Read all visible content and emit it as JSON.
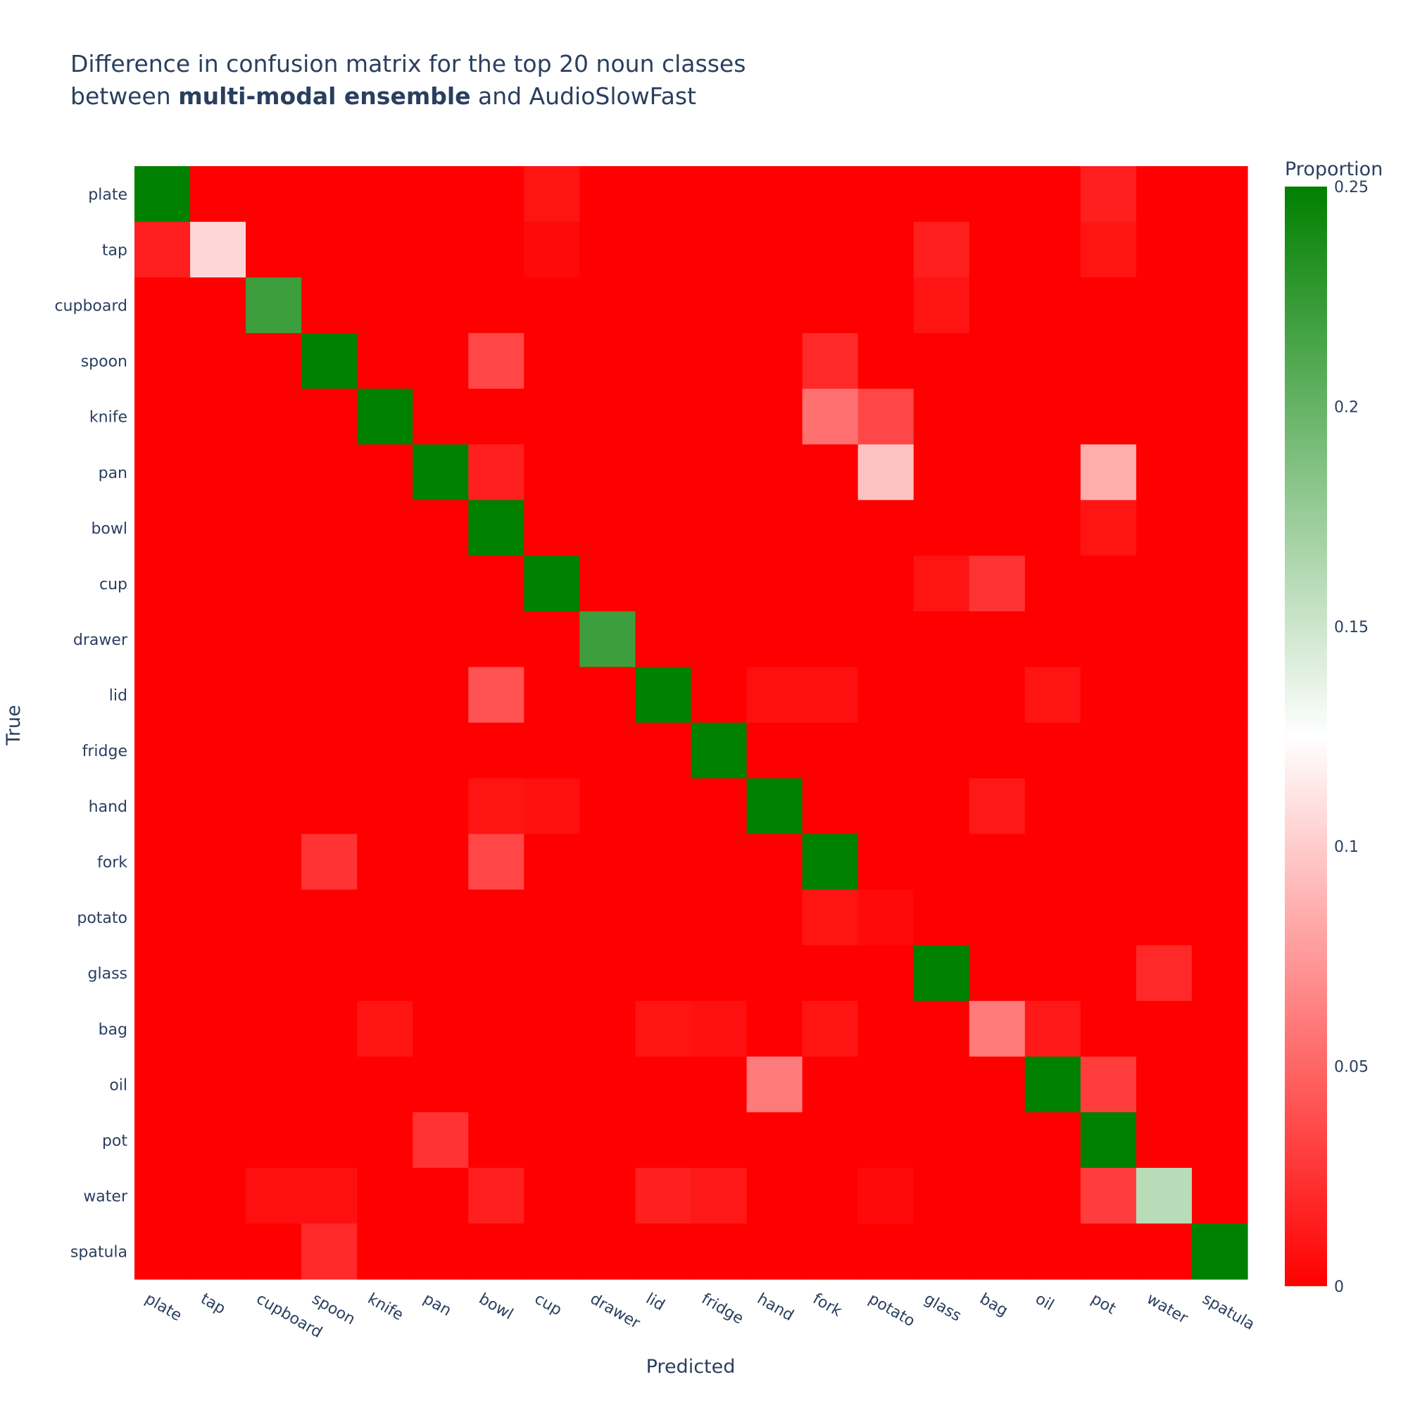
{
  "chart_data": {
    "type": "heatmap",
    "title_line1": "Difference in confusion matrix for the top 20 noun classes",
    "title_line2_prefix": "between ",
    "title_line2_bold": "multi-modal ensemble",
    "title_line2_suffix": " and AudioSlowFast",
    "xlabel": "Predicted",
    "ylabel": "True",
    "colorbar_title": "Proportion",
    "zlim": [
      0,
      0.25
    ],
    "colorscale": [
      "#ff0000",
      "#ffffff",
      "#008000"
    ],
    "colorbar_ticks": [
      "0",
      "0.05",
      "0.1",
      "0.15",
      "0.2",
      "0.25"
    ],
    "colorbar_tick_values": [
      0,
      0.05,
      0.1,
      0.15,
      0.2,
      0.25
    ],
    "x_categories": [
      "plate",
      "tap",
      "cupboard",
      "spoon",
      "knife",
      "pan",
      "bowl",
      "cup",
      "drawer",
      "lid",
      "fridge",
      "hand",
      "fork",
      "potato",
      "glass",
      "bag",
      "oil",
      "pot",
      "water",
      "spatula"
    ],
    "y_categories": [
      "plate",
      "tap",
      "cupboard",
      "spoon",
      "knife",
      "pan",
      "bowl",
      "cup",
      "drawer",
      "lid",
      "fridge",
      "hand",
      "fork",
      "potato",
      "glass",
      "bag",
      "oil",
      "pot",
      "water",
      "spatula"
    ],
    "z": [
      [
        0.25,
        0,
        0,
        0,
        0,
        0,
        0,
        0.01,
        0,
        0,
        0,
        0,
        0,
        0,
        0,
        0,
        0,
        0.015,
        0,
        0
      ],
      [
        0.015,
        0.105,
        0,
        0,
        0,
        0,
        0,
        0.005,
        0,
        0,
        0,
        0,
        0,
        0,
        0.015,
        0,
        0,
        0.01,
        0,
        0
      ],
      [
        0,
        0,
        0.22,
        0,
        0,
        0,
        0,
        0,
        0,
        0,
        0,
        0,
        0,
        0,
        0.01,
        0,
        0,
        0,
        0,
        0
      ],
      [
        0,
        0,
        0,
        0.25,
        0,
        0,
        0.035,
        0,
        0,
        0,
        0,
        0,
        0.02,
        0,
        0,
        0,
        0,
        0,
        0,
        0
      ],
      [
        0,
        0,
        0,
        0,
        0.25,
        0,
        0,
        0,
        0,
        0,
        0,
        0,
        0.055,
        0.035,
        0,
        0,
        0,
        0,
        0,
        0
      ],
      [
        0,
        0,
        0,
        0,
        0,
        0.25,
        0.015,
        0,
        0,
        0,
        0,
        0,
        0,
        0.095,
        0,
        0,
        0,
        0.085,
        0,
        0
      ],
      [
        0,
        0,
        0,
        0,
        0,
        0,
        0.25,
        0,
        0,
        0,
        0,
        0,
        0,
        0,
        0,
        0,
        0,
        0.01,
        0,
        0
      ],
      [
        0,
        0,
        0,
        0,
        0,
        0,
        0,
        0.25,
        0,
        0,
        0,
        0,
        0,
        0,
        0.01,
        0.025,
        0,
        0,
        0,
        0
      ],
      [
        0,
        0,
        0,
        0,
        0,
        0,
        0,
        0,
        0.22,
        0,
        0,
        0,
        0,
        0,
        0,
        0,
        0,
        0,
        0,
        0
      ],
      [
        0,
        0,
        0,
        0,
        0,
        0,
        0.04,
        0,
        0,
        0.25,
        0,
        0.008,
        0.008,
        0,
        0,
        0,
        0.01,
        0,
        0,
        0
      ],
      [
        0,
        0,
        0,
        0,
        0,
        0,
        0,
        0,
        0,
        0,
        0.25,
        0,
        0,
        0,
        0,
        0,
        0,
        0,
        0,
        0
      ],
      [
        0,
        0,
        0,
        0,
        0,
        0,
        0.01,
        0.008,
        0,
        0,
        0,
        0.25,
        0,
        0,
        0,
        0.012,
        0,
        0,
        0,
        0
      ],
      [
        0,
        0,
        0,
        0.025,
        0,
        0,
        0.035,
        0,
        0,
        0,
        0,
        0,
        0.25,
        0,
        0,
        0,
        0,
        0,
        0,
        0
      ],
      [
        0,
        0,
        0,
        0,
        0,
        0,
        0,
        0,
        0,
        0,
        0,
        0,
        0.01,
        0.005,
        0,
        0,
        0,
        0,
        0,
        0
      ],
      [
        0,
        0,
        0,
        0,
        0,
        0,
        0,
        0,
        0,
        0,
        0,
        0,
        0,
        0,
        0.25,
        0,
        0,
        0,
        0.02,
        0
      ],
      [
        0,
        0,
        0,
        0,
        0.01,
        0,
        0,
        0,
        0,
        0.01,
        0.008,
        0,
        0.01,
        0,
        0,
        0.06,
        0.012,
        0,
        0,
        0
      ],
      [
        0,
        0,
        0,
        0,
        0,
        0,
        0,
        0,
        0,
        0,
        0,
        0.06,
        0,
        0,
        0,
        0,
        0.25,
        0.03,
        0,
        0
      ],
      [
        0,
        0,
        0,
        0,
        0,
        0.025,
        0,
        0,
        0,
        0,
        0,
        0,
        0,
        0,
        0,
        0,
        0,
        0.25,
        0,
        0
      ],
      [
        0,
        0,
        0.008,
        0.008,
        0,
        0,
        0.015,
        0,
        0,
        0.015,
        0.012,
        0,
        0,
        0.005,
        0,
        0,
        0,
        0.03,
        0.16,
        0
      ],
      [
        0,
        0,
        0,
        0.02,
        0,
        0,
        0,
        0,
        0,
        0,
        0,
        0,
        0,
        0,
        0,
        0,
        0,
        0,
        0,
        0.25
      ]
    ]
  }
}
